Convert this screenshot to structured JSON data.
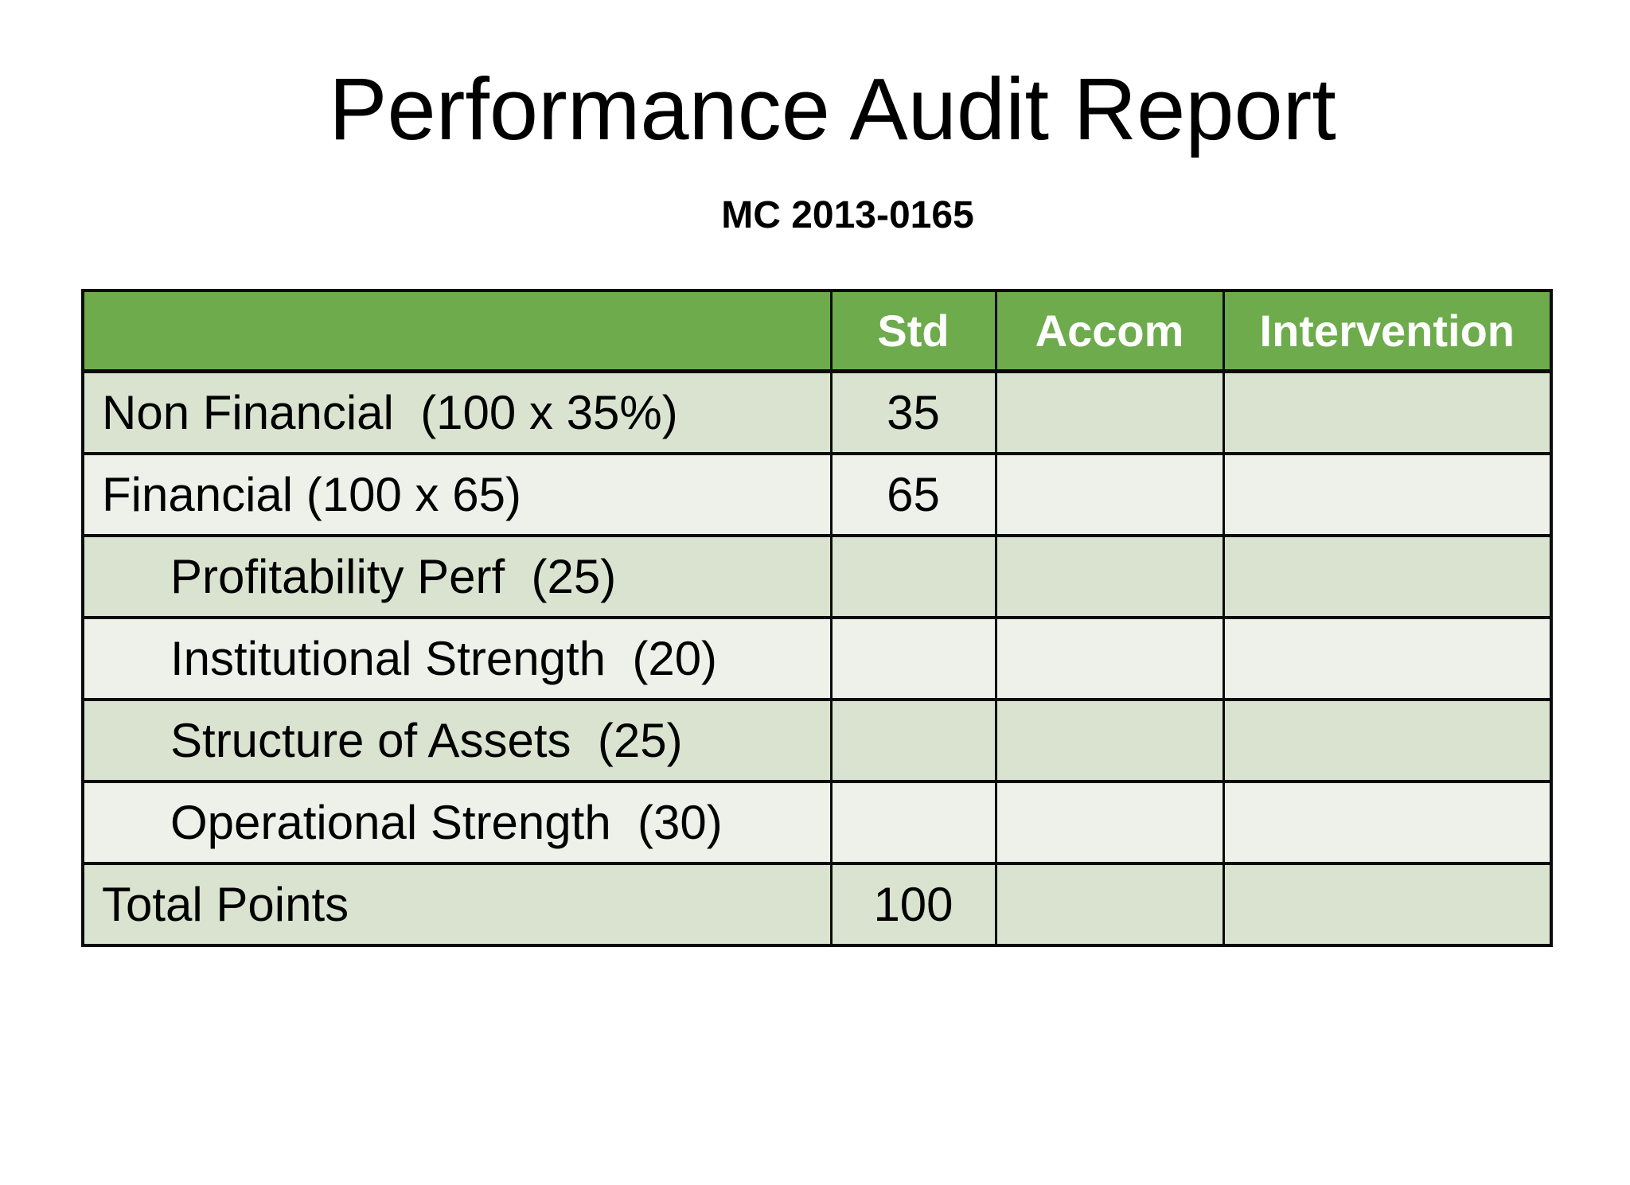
{
  "slide": {
    "title": "Performance Audit Report",
    "subtitle": "MC 2013-0165"
  },
  "colors": {
    "page_bg": "#FFFFFF",
    "header_bg": "#6DAB4C",
    "header_text": "#FFFFFF",
    "row_odd_bg": "#D9E3D0",
    "row_even_bg": "#EEF1EA",
    "border": "#0B0B0B",
    "text": "#000000"
  },
  "table": {
    "columns": [
      {
        "label": ""
      },
      {
        "label": "Std"
      },
      {
        "label": "Accom"
      },
      {
        "label": "Intervention"
      }
    ],
    "rows": [
      {
        "label": "Non Financial  (100 x 35%)",
        "std": "35",
        "accom": "",
        "intervention": "",
        "indent": false
      },
      {
        "label": "Financial (100 x 65)",
        "std": "65",
        "accom": "",
        "intervention": "",
        "indent": false
      },
      {
        "label": "Profitability Perf  (25)",
        "std": "",
        "accom": "",
        "intervention": "",
        "indent": true
      },
      {
        "label": "Institutional Strength  (20)",
        "std": "",
        "accom": "",
        "intervention": "",
        "indent": true
      },
      {
        "label": "Structure of Assets  (25)",
        "std": "",
        "accom": "",
        "intervention": "",
        "indent": true
      },
      {
        "label": "Operational Strength  (30)",
        "std": "",
        "accom": "",
        "intervention": "",
        "indent": true
      },
      {
        "label": "Total Points",
        "std": "100",
        "accom": "",
        "intervention": "",
        "indent": false
      }
    ]
  }
}
